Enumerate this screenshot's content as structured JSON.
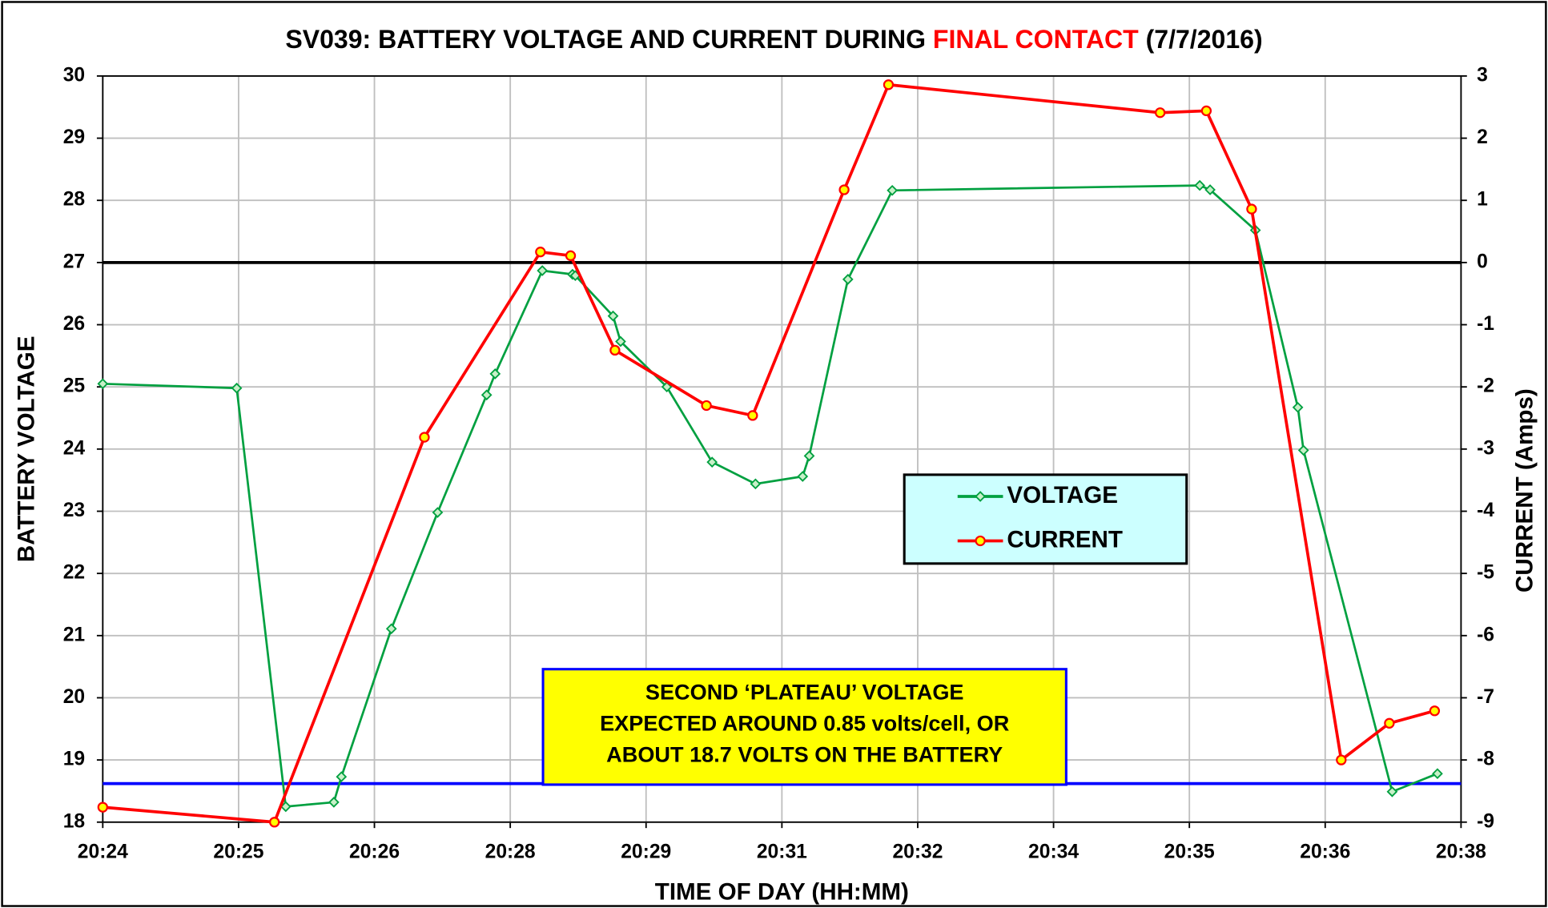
{
  "chart_data": {
    "type": "line",
    "title_parts": [
      {
        "text": "SV039: BATTERY VOLTAGE AND CURRENT DURING ",
        "color": "#000000"
      },
      {
        "text": "FINAL CONTACT",
        "color": "#ff0000"
      },
      {
        "text": " (7/7/2016)",
        "color": "#000000"
      }
    ],
    "x_label": "TIME OF DAY (HH:MM)",
    "y_label": "BATTERY VOLTAGE",
    "y2_label": "CURRENT (Amps)",
    "xlim": [
      1224,
      1238.4
    ],
    "xticks": [
      {
        "value": 1224,
        "label": "20:24"
      },
      {
        "value": 1225.44,
        "label": "20:25"
      },
      {
        "value": 1226.88,
        "label": "20:26"
      },
      {
        "value": 1228.32,
        "label": "20:28"
      },
      {
        "value": 1229.76,
        "label": "20:29"
      },
      {
        "value": 1231.2,
        "label": "20:31"
      },
      {
        "value": 1232.64,
        "label": "20:32"
      },
      {
        "value": 1234.08,
        "label": "20:34"
      },
      {
        "value": 1235.52,
        "label": "20:35"
      },
      {
        "value": 1236.96,
        "label": "20:36"
      },
      {
        "value": 1238.4,
        "label": "20:38"
      }
    ],
    "ylim": [
      18,
      30
    ],
    "yticks": [
      18,
      19,
      20,
      21,
      22,
      23,
      24,
      25,
      26,
      27,
      28,
      29,
      30
    ],
    "y2lim": [
      -9,
      3
    ],
    "y2ticks": [
      -9,
      -8,
      -7,
      -6,
      -5,
      -4,
      -3,
      -2,
      -1,
      0,
      1,
      2,
      3
    ],
    "grid": true,
    "series": [
      {
        "name": "VOLTAGE",
        "color": "#00a040",
        "marker": "diamond",
        "axis": "y",
        "x": [
          1224.0,
          1225.42,
          1225.94,
          1226.45,
          1226.53,
          1227.06,
          1227.55,
          1228.07,
          1228.16,
          1228.66,
          1228.98,
          1229.01,
          1229.41,
          1229.49,
          1229.98,
          1230.46,
          1230.92,
          1231.42,
          1231.49,
          1231.9,
          1232.37,
          1235.63,
          1235.74,
          1236.22,
          1236.67,
          1236.73,
          1237.67,
          1238.15
        ],
        "values": [
          25.05,
          24.98,
          18.25,
          18.32,
          18.73,
          21.11,
          22.98,
          24.87,
          25.21,
          26.87,
          26.81,
          26.79,
          26.14,
          25.73,
          25.0,
          23.79,
          23.44,
          23.56,
          23.89,
          26.73,
          28.16,
          28.24,
          28.17,
          27.52,
          24.67,
          23.98,
          18.49,
          18.78
        ]
      },
      {
        "name": "CURRENT",
        "color": "#ff0000",
        "marker": "circle",
        "marker_fill": "#ffff00",
        "axis": "y2",
        "x": [
          1224.0,
          1225.82,
          1227.41,
          1228.64,
          1228.96,
          1229.43,
          1230.4,
          1230.89,
          1231.86,
          1232.33,
          1235.21,
          1235.7,
          1236.18,
          1237.13,
          1237.64,
          1238.12
        ],
        "values": [
          -8.76,
          -9.0,
          -2.81,
          0.17,
          0.11,
          -1.41,
          -2.3,
          -2.46,
          1.17,
          2.86,
          2.41,
          2.44,
          0.86,
          -8.0,
          -7.41,
          -7.21
        ]
      }
    ],
    "reference_lines": [
      {
        "axis": "y2",
        "value": 0,
        "color": "#000000"
      },
      {
        "axis": "y",
        "value": 18.62,
        "color": "#0000ff"
      }
    ],
    "annotation": {
      "lines": [
        "SECOND ‘PLATEAU’ VOLTAGE",
        "EXPECTED AROUND 0.85 volts/cell, OR",
        "ABOUT 18.7 VOLTS ON THE BATTERY"
      ],
      "fill": "#ffff00",
      "border": "#0000ff"
    },
    "legend_fill": "#ccffff"
  }
}
